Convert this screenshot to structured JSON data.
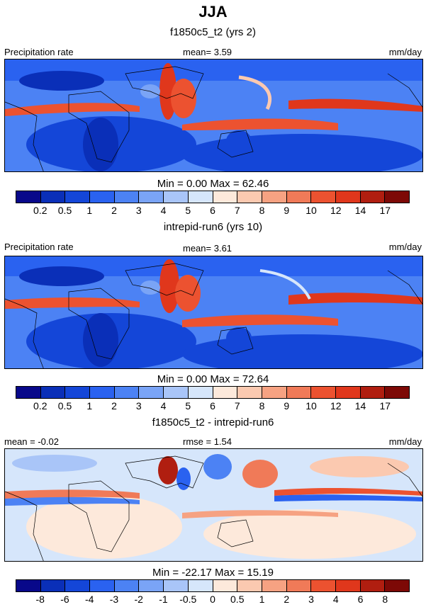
{
  "title": "JJA",
  "colors": {
    "abs_scale": [
      "#08088a",
      "#0a2fb8",
      "#1446d8",
      "#2a62f0",
      "#4c82f4",
      "#7aa4f6",
      "#a9c5f8",
      "#d6e6fb",
      "#fde9db",
      "#fbc9b0",
      "#f6a282",
      "#f07a58",
      "#ec5230",
      "#e0371c",
      "#b01e10",
      "#7d0906"
    ],
    "diff_scale": [
      "#08088a",
      "#0a2fb8",
      "#1446d8",
      "#2a62f0",
      "#4c82f4",
      "#7aa4f6",
      "#a9c5f8",
      "#d6e6fb",
      "#fde9db",
      "#fbc9b0",
      "#f6a282",
      "#f07a58",
      "#ec5230",
      "#e0371c",
      "#b01e10",
      "#7d0906"
    ]
  },
  "chart_data": [
    {
      "type": "heatmap",
      "title": "f1850c5_t2 (yrs 2)",
      "left_label": "Precipitation rate",
      "center_label": "mean=   3.59",
      "right_label": "mm/day",
      "stats": "Min =   0.00 Max =  62.46",
      "colorbar_ticks": [
        "0.2",
        "0.5",
        "1",
        "2",
        "3",
        "4",
        "5",
        "6",
        "7",
        "8",
        "9",
        "10",
        "12",
        "14",
        "17"
      ]
    },
    {
      "type": "heatmap",
      "title": "intrepid-run6 (yrs 10)",
      "left_label": "Precipitation rate",
      "center_label": "mean=   3.61",
      "right_label": "mm/day",
      "stats": "Min =   0.00 Max =  72.64",
      "colorbar_ticks": [
        "0.2",
        "0.5",
        "1",
        "2",
        "3",
        "4",
        "5",
        "6",
        "7",
        "8",
        "9",
        "10",
        "12",
        "14",
        "17"
      ]
    },
    {
      "type": "heatmap",
      "title": "f1850c5_t2 - intrepid-run6",
      "left_label": "mean =  -0.02",
      "center_label": "rmse =   1.54",
      "right_label": "mm/day",
      "stats": "Min = -22.17 Max =  15.19",
      "colorbar_ticks": [
        "-8",
        "-6",
        "-4",
        "-3",
        "-2",
        "-1",
        "-0.5",
        "0",
        "0.5",
        "1",
        "2",
        "3",
        "4",
        "6",
        "8"
      ]
    }
  ]
}
